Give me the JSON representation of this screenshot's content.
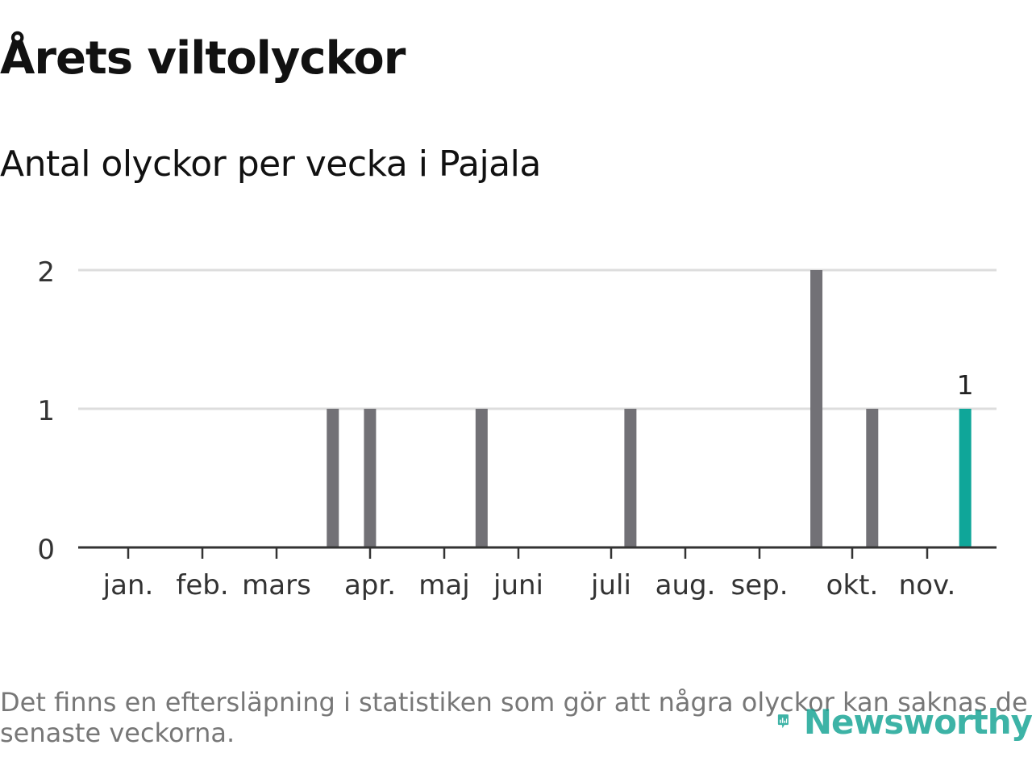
{
  "title": "Årets viltolyckor",
  "subtitle": "Antal olyckor per vecka i Pajala",
  "footnote": "Det finns en eftersläpning i statistiken som gör att några olyckor kan saknas de senaste veckorna.",
  "brand": "Newsworthy",
  "colors": {
    "bar": "#727176",
    "highlight": "#0fa699",
    "grid": "#dddddd",
    "axis": "#333333",
    "brand": "#13a393"
  },
  "chart_data": {
    "type": "bar",
    "xlabel": "",
    "ylabel": "",
    "ylim": [
      0,
      2
    ],
    "yticks": [
      "0",
      "1",
      "2"
    ],
    "xtick_labels": [
      "jan.",
      "feb.",
      "mars",
      "apr.",
      "maj",
      "juni",
      "juli",
      "aug.",
      "sep.",
      "okt.",
      "nov."
    ],
    "weeks_with_accidents": [
      {
        "week": 12,
        "value": 1
      },
      {
        "week": 14,
        "value": 1
      },
      {
        "week": 20,
        "value": 1
      },
      {
        "week": 28,
        "value": 1
      },
      {
        "week": 38,
        "value": 2
      },
      {
        "week": 41,
        "value": 1
      },
      {
        "week": 46,
        "value": 1,
        "highlight": true,
        "label": "1"
      }
    ],
    "grid": true
  }
}
